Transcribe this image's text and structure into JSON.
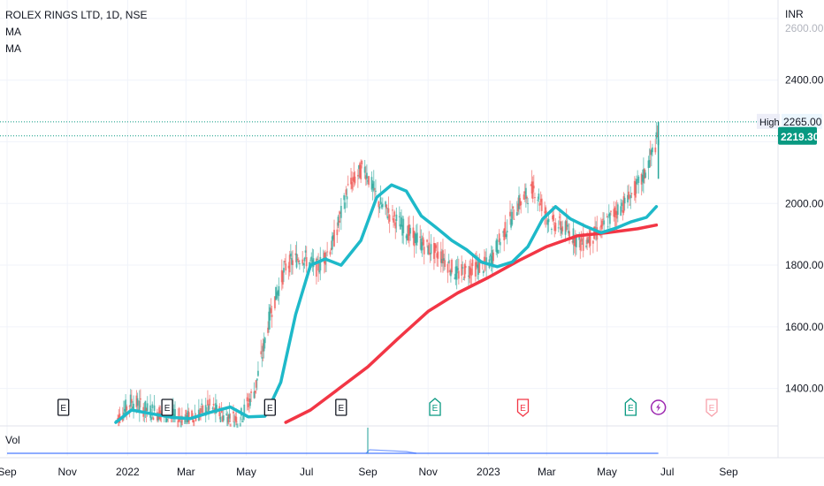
{
  "legend": {
    "symbol": "ROLEX RINGS LTD, 1D, NSE",
    "ma1": "MA",
    "ma2": "MA"
  },
  "price_axis": {
    "currency": "INR",
    "top_partial_label": "2600.00",
    "high_tag_label": "High",
    "high_value": "2265.00",
    "last_value": "2219.30"
  },
  "volume_label": "Vol",
  "colors": {
    "up": "#26a69a",
    "down": "#ef5350",
    "ma_fast": "#1eb9c9",
    "ma_slow": "#f23645",
    "volume": "#2962ff",
    "grid": "#f0f3fa",
    "last_price": "#089981"
  },
  "chart_data": {
    "type": "line",
    "title": "ROLEX RINGS LTD, 1D, NSE",
    "xlabel": "",
    "ylabel": "INR",
    "ylim": [
      1290,
      2660
    ],
    "x_ticks": [
      "Sep",
      "Nov",
      "2022",
      "Mar",
      "May",
      "Jul",
      "Sep",
      "Nov",
      "2023",
      "Mar",
      "May",
      "Jul",
      "Sep"
    ],
    "y_ticks": [
      1400,
      1600,
      1800,
      2000,
      2400
    ],
    "grid": true,
    "legend_position": "top-left",
    "x_range": [
      "2021-09",
      "2023-09"
    ],
    "series": [
      {
        "name": "MA",
        "x": [
          "2021-12-20",
          "2022-01-05",
          "2022-01-25",
          "2022-02-15",
          "2022-03-05",
          "2022-03-25",
          "2022-04-15",
          "2022-05-03",
          "2022-05-20",
          "2022-06-05",
          "2022-06-20",
          "2022-07-05",
          "2022-07-20",
          "2022-08-05",
          "2022-08-25",
          "2022-09-10",
          "2022-09-25",
          "2022-10-10",
          "2022-10-25",
          "2022-11-10",
          "2022-11-25",
          "2022-12-10",
          "2022-12-25",
          "2023-01-10",
          "2023-01-25",
          "2023-02-10",
          "2023-02-25",
          "2023-03-10",
          "2023-03-25",
          "2023-04-10",
          "2023-04-25",
          "2023-05-10",
          "2023-05-25",
          "2023-06-10",
          "2023-06-20"
        ],
        "values": [
          1290,
          1330,
          1318,
          1306,
          1302,
          1322,
          1340,
          1308,
          1310,
          1420,
          1640,
          1800,
          1820,
          1800,
          1880,
          2020,
          2060,
          2040,
          1960,
          1920,
          1880,
          1850,
          1810,
          1795,
          1810,
          1860,
          1950,
          1990,
          1950,
          1925,
          1905,
          1920,
          1940,
          1955,
          1990
        ]
      },
      {
        "name": "MA",
        "x": [
          "2022-06-10",
          "2022-07-05",
          "2022-08-01",
          "2022-09-01",
          "2022-10-01",
          "2022-11-01",
          "2022-12-01",
          "2023-01-01",
          "2023-02-01",
          "2023-03-01",
          "2023-04-01",
          "2023-05-01",
          "2023-06-01",
          "2023-06-20"
        ],
        "values": [
          1290,
          1330,
          1395,
          1470,
          1560,
          1650,
          1710,
          1760,
          1815,
          1860,
          1895,
          1905,
          1918,
          1930
        ]
      }
    ],
    "price": {
      "high": 2265.0,
      "last": 2219.3,
      "closes": [
        1290,
        1360,
        1330,
        1320,
        1300,
        1305,
        1340,
        1310,
        1300,
        1400,
        1650,
        1800,
        1830,
        1790,
        1870,
        2050,
        2120,
        2000,
        1950,
        1900,
        1860,
        1830,
        1770,
        1790,
        1800,
        1900,
        2000,
        2050,
        1940,
        1920,
        1870,
        1900,
        1960,
        2010,
        2080,
        2219.3
      ]
    },
    "events": [
      "E",
      "E",
      "E",
      "E",
      "E",
      "E",
      "E",
      "E"
    ],
    "volume_spike_at": "2022-09-01"
  }
}
